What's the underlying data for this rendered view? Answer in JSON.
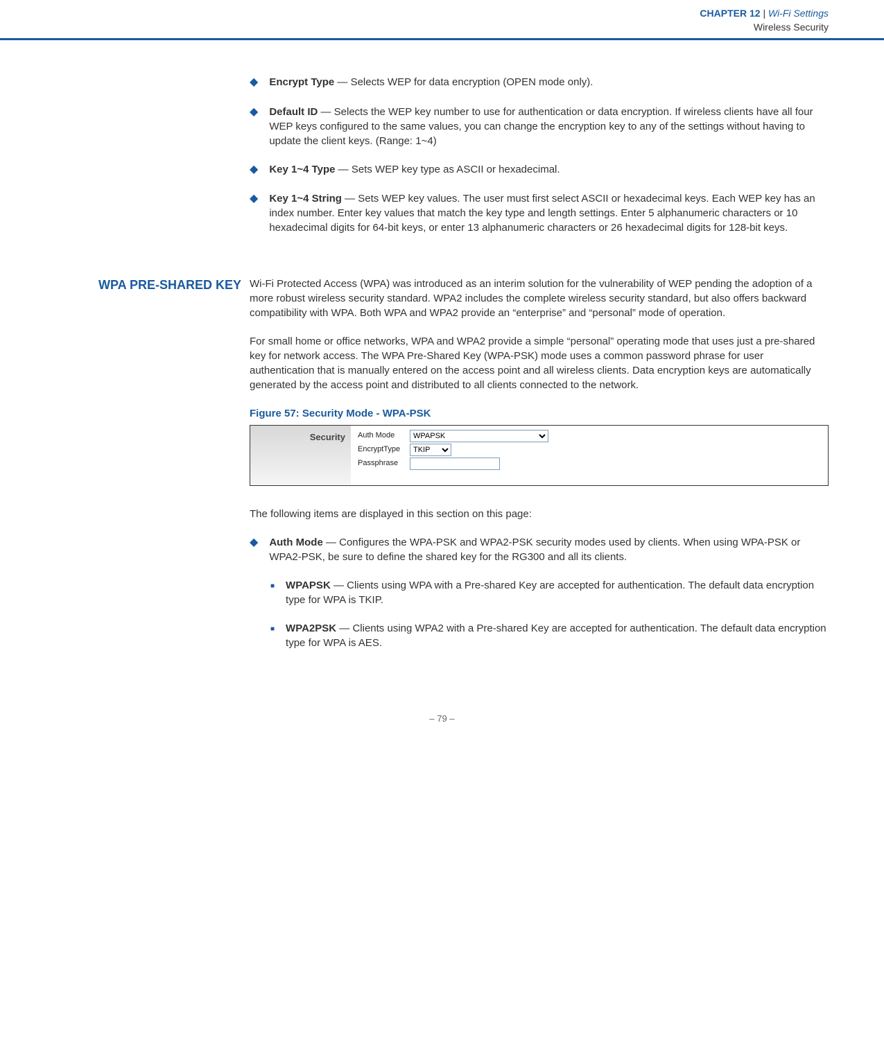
{
  "header": {
    "chapter_label": "CHAPTER",
    "chapter_number": "12",
    "chapter_title": "Wi-Fi Settings",
    "subtitle": "Wireless Security"
  },
  "bullets": {
    "encrypt_type": {
      "label": "Encrypt Type",
      "text": " — Selects WEP for data encryption (OPEN mode only)."
    },
    "default_id": {
      "label": "Default ID",
      "text": " — Selects the WEP key number to use for authentication or data encryption. If wireless clients have all four WEP keys configured to the same values, you can change the encryption key to any of the settings without having to update the client keys. (Range: 1~4)"
    },
    "key_type": {
      "label": "Key 1~4 Type",
      "text": " — Sets WEP key type as ASCII or hexadecimal."
    },
    "key_string": {
      "label": "Key 1~4 String",
      "text": " — Sets WEP key values. The user must first select ASCII or hexadecimal keys. Each WEP key has an index number. Enter key values that match the key type and length settings. Enter 5 alphanumeric characters or 10 hexadecimal digits for 64-bit keys, or enter 13 alphanumeric characters or 26 hexadecimal digits for 128-bit keys."
    }
  },
  "section": {
    "title": "WPA PRE-SHARED KEY",
    "para1": "Wi-Fi Protected Access (WPA) was introduced as an interim solution for the vulnerability of WEP pending the adoption of a more robust wireless security standard. WPA2 includes the complete wireless security standard, but also offers backward compatibility with WPA. Both WPA and WPA2 provide an “enterprise” and “personal” mode of operation.",
    "para2": "For small home or office networks, WPA and WPA2 provide a simple “personal” operating mode that uses just a pre-shared key for network access. The WPA Pre-Shared Key (WPA-PSK) mode uses a common password phrase for user authentication that is manually entered on the access point and all wireless clients. Data encryption keys are automatically generated by the access point and distributed to all clients connected to the network."
  },
  "figure": {
    "caption": "Figure 57:  Security Mode - WPA-PSK",
    "panel_label": "Security",
    "auth_mode_label": "Auth Mode",
    "auth_mode_value": "WPAPSK",
    "encrypt_label": "EncryptType",
    "encrypt_value": "TKIP",
    "passphrase_label": "Passphrase"
  },
  "after_figure": {
    "intro": "The following items are displayed in this section on this page:",
    "auth_mode": {
      "label": "Auth Mode",
      "text": " — Configures the WPA-PSK and WPA2-PSK security modes used by clients. When using WPA-PSK or WPA2-PSK, be sure to define the shared key for the RG300 and all its clients."
    },
    "wpapsk": {
      "label": "WPAPSK",
      "text": " — Clients using WPA with a Pre-shared Key are accepted for authentication. The default data encryption type for WPA is TKIP."
    },
    "wpa2psk": {
      "label": "WPA2PSK",
      "text": " — Clients using WPA2 with a Pre-shared Key are accepted for authentication. The default data encryption type for WPA is AES."
    }
  },
  "footer": {
    "page": "–  79  –"
  }
}
